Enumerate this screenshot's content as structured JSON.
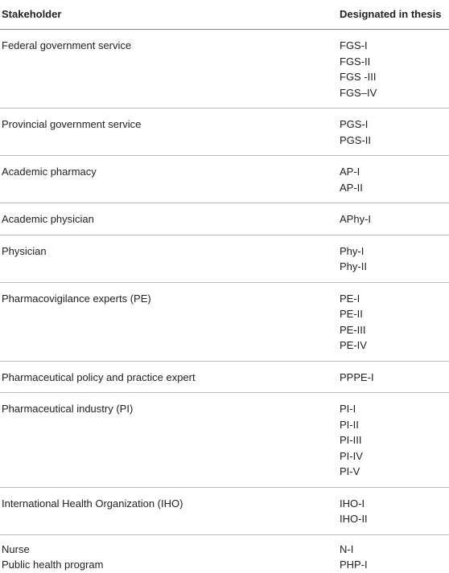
{
  "table": {
    "header": [
      "Stakeholder",
      "Designated in thesis"
    ],
    "rows": [
      {
        "stakeholder": "Federal government service",
        "designations": [
          "FGS-I",
          "FGS-II",
          "FGS -III",
          "FGS–IV"
        ]
      },
      {
        "stakeholder": "Provincial government service",
        "designations": [
          "PGS-I",
          "PGS-II"
        ]
      },
      {
        "stakeholder": "Academic pharmacy",
        "designations": [
          "AP-I",
          "AP-II"
        ]
      },
      {
        "stakeholder": "Academic physician",
        "designations": [
          "APhy-I"
        ]
      },
      {
        "stakeholder": "Physician",
        "designations": [
          "Phy-I",
          "Phy-II"
        ]
      },
      {
        "stakeholder": "Pharmacovigilance experts (PE)",
        "designations": [
          "PE-I",
          "PE-II",
          "PE-III",
          "PE-IV"
        ]
      },
      {
        "stakeholder": "Pharmaceutical policy and practice expert",
        "designations": [
          "PPPE-I"
        ]
      },
      {
        "stakeholder": "Pharmaceutical industry (PI)",
        "designations": [
          "PI-I",
          "PI-II",
          "PI-III",
          "PI-IV",
          "PI-V"
        ]
      },
      {
        "stakeholder": "International Health Organization (IHO)",
        "designations": [
          "IHO-I",
          "IHO-II"
        ]
      },
      {
        "stakeholder": "Nurse",
        "designations": [
          "N-I"
        ]
      },
      {
        "stakeholder": "Public health program",
        "designations": [
          "PHP-I"
        ]
      }
    ]
  }
}
